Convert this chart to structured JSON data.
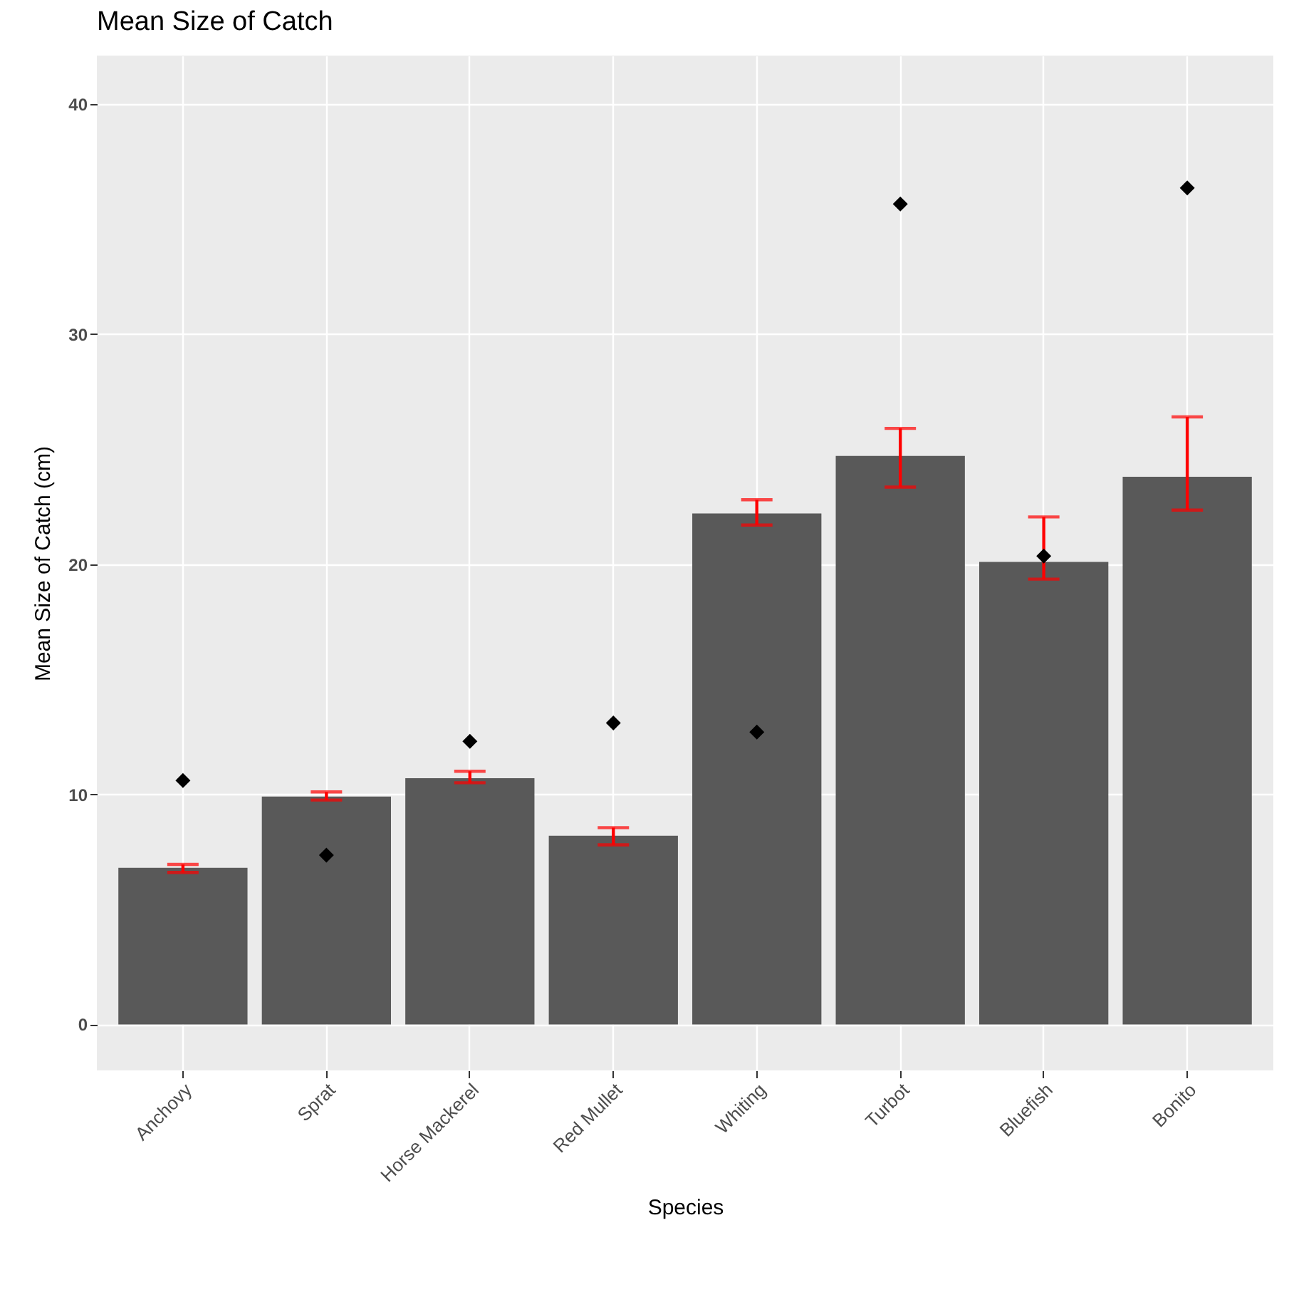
{
  "chart_data": {
    "type": "bar",
    "title": "Mean Size of Catch",
    "xlabel": "Species",
    "ylabel": "Mean Size of Catch (cm)",
    "categories": [
      "Anchovy",
      "Sprat",
      "Horse Mackerel",
      "Red Mullet",
      "Whiting",
      "Turbot",
      "Bluefish",
      "Bonito"
    ],
    "series": [
      {
        "color": "#595959",
        "values": [
          6.8,
          9.9,
          10.7,
          8.2,
          22.2,
          24.7,
          20.1,
          23.8
        ],
        "errors": [
          [
            6.6,
            6.95
          ],
          [
            9.75,
            10.1
          ],
          [
            10.5,
            11.0
          ],
          [
            7.8,
            8.55
          ],
          [
            21.7,
            22.8
          ],
          [
            23.35,
            25.9
          ],
          [
            19.35,
            22.05
          ],
          [
            22.35,
            26.4
          ]
        ]
      },
      {
        "type": "scatter",
        "color": "#000000",
        "marker": "diamond",
        "x": [
          "Anchovy",
          "Sprat",
          "Horse Mackerel",
          "Red Mullet",
          "Whiting",
          "Turbot",
          "Bluefish",
          "Bonito"
        ],
        "values": [
          10.6,
          7.35,
          12.3,
          13.1,
          12.7,
          35.65,
          20.35,
          36.35
        ]
      }
    ],
    "ylim": [
      -2,
      42.1
    ],
    "yticks": [
      0,
      10,
      20,
      30,
      40
    ],
    "grid": true
  }
}
